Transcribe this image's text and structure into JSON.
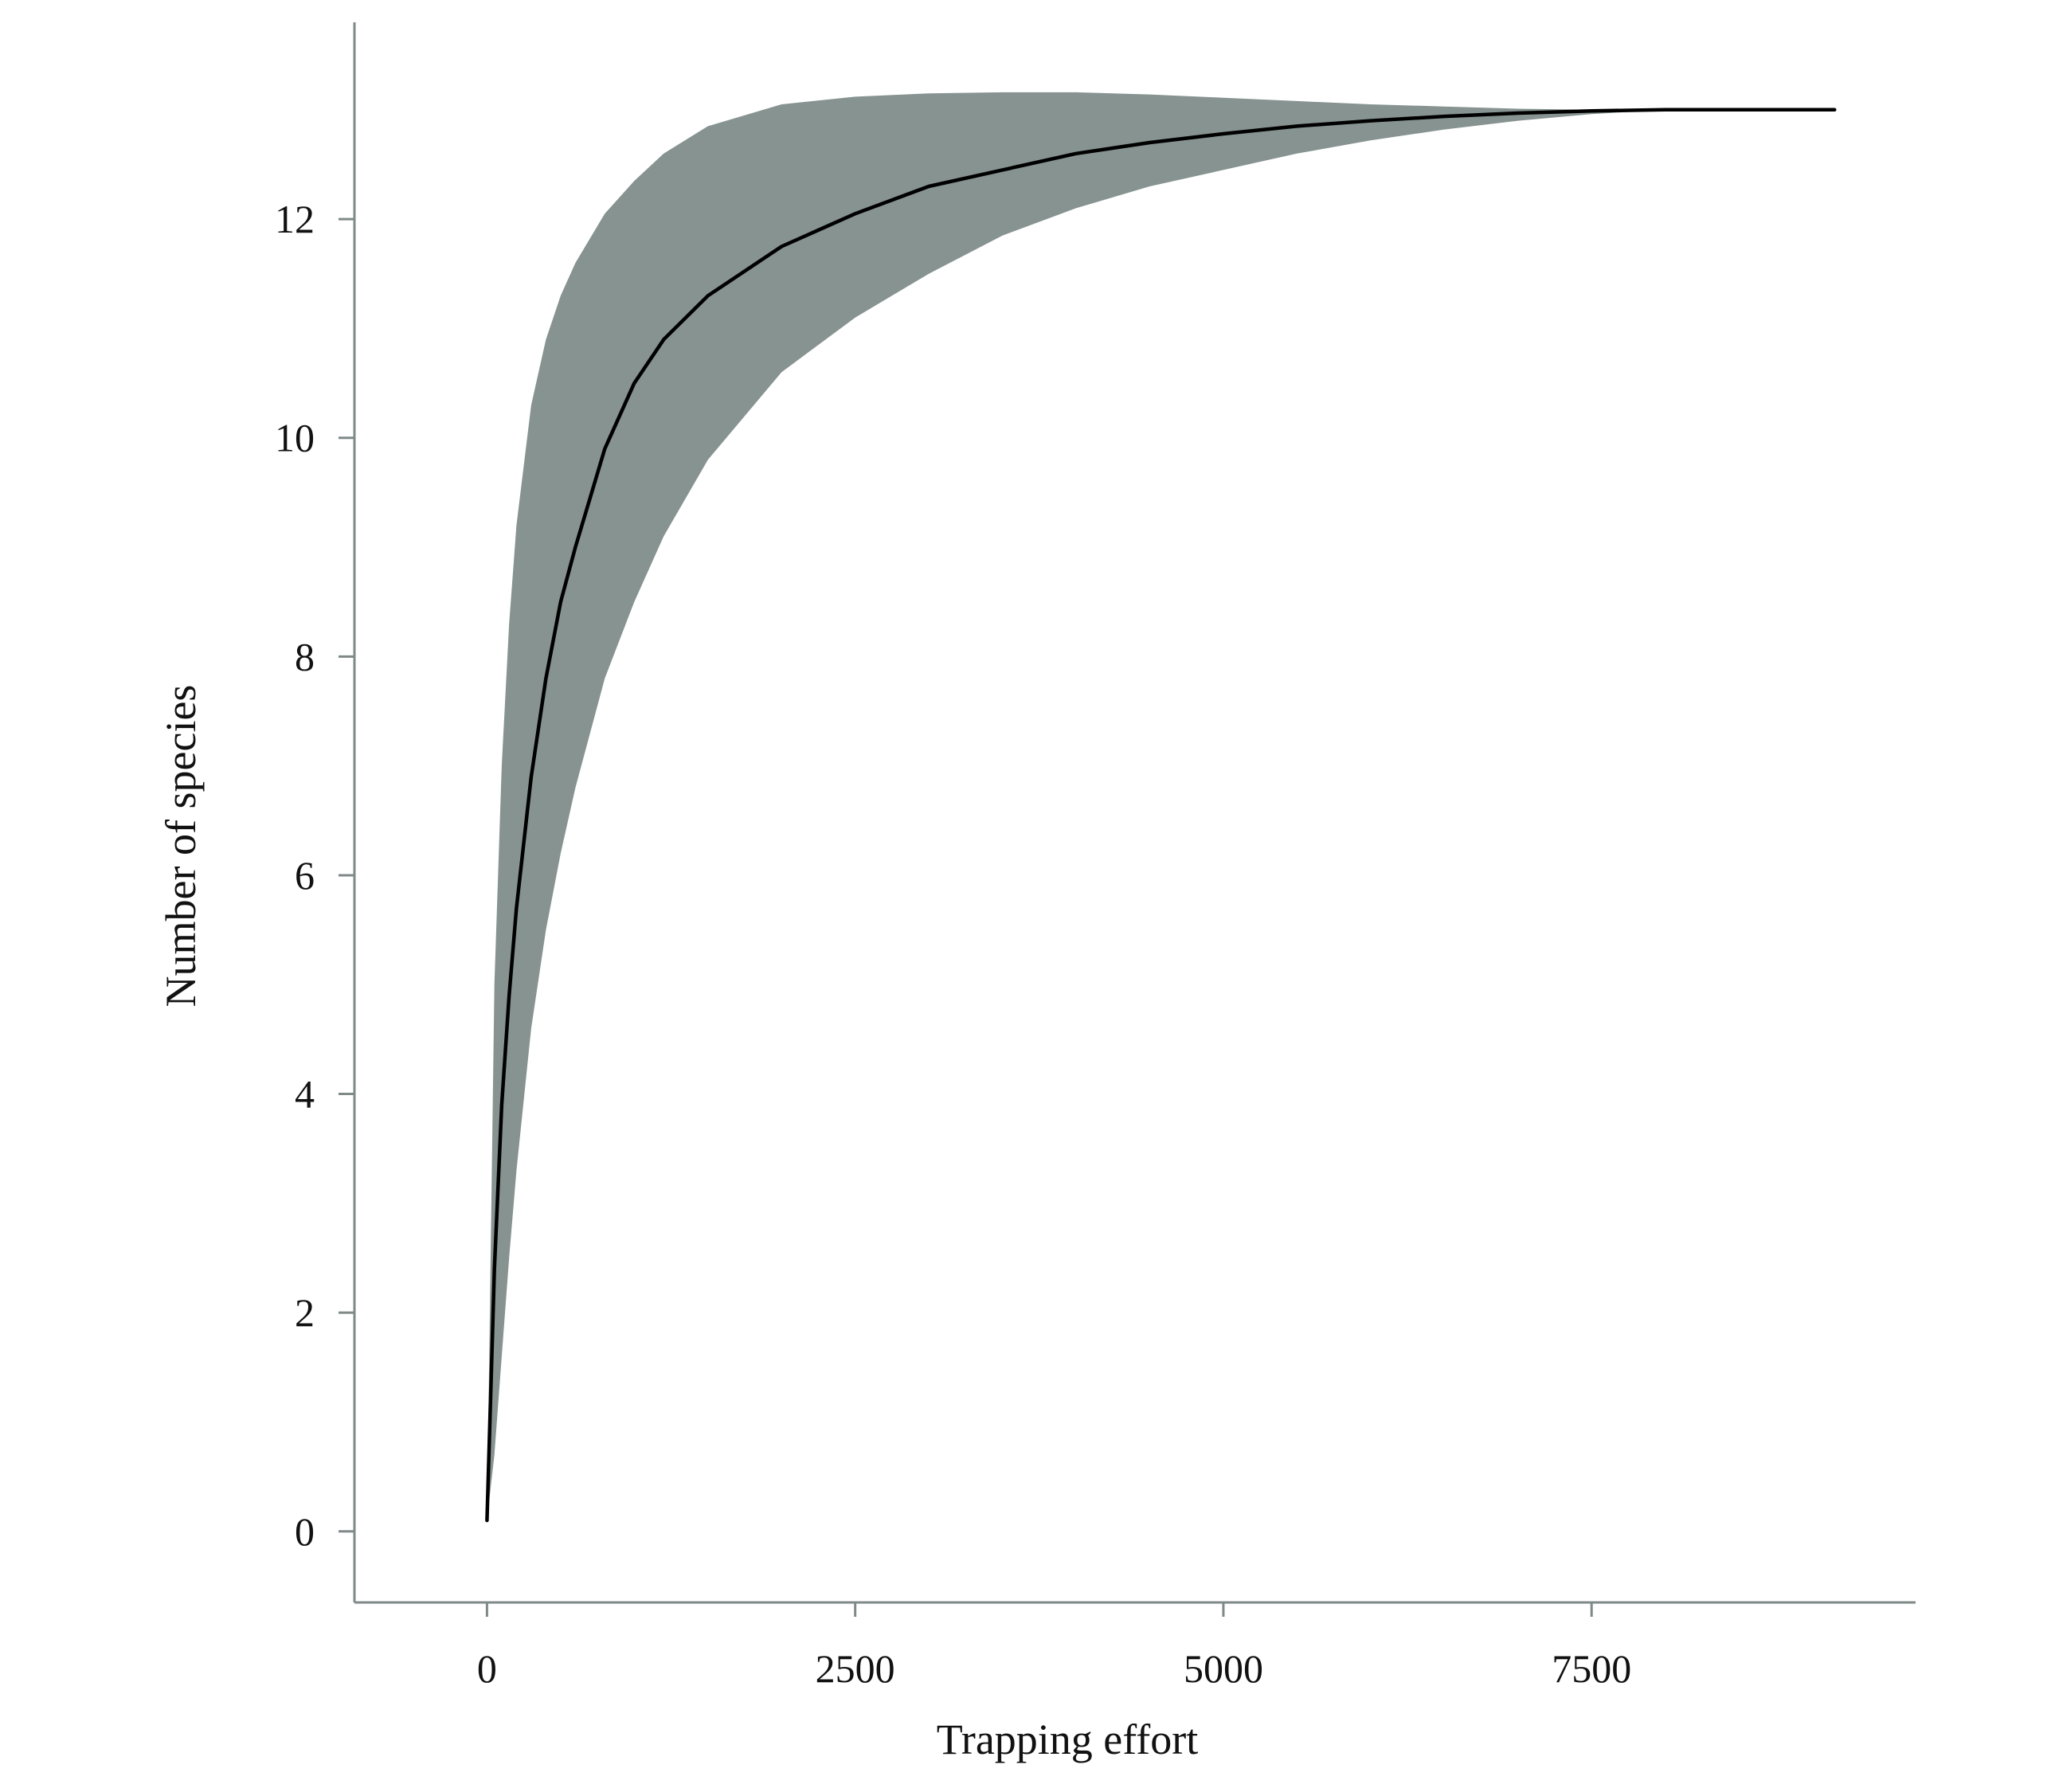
{
  "chart_data": {
    "type": "area",
    "title": "",
    "xlabel": "Trapping effort",
    "ylabel": "Number of species",
    "xlim": [
      -900,
      9700
    ],
    "ylim": [
      -0.65,
      13.8
    ],
    "xticks": [
      0,
      2500,
      5000,
      7500
    ],
    "xtick_labels": [
      "0",
      "2500",
      "5000",
      "7500"
    ],
    "yticks": [
      0,
      2,
      4,
      6,
      8,
      10,
      12
    ],
    "ytick_labels": [
      "0",
      "2",
      "4",
      "6",
      "8",
      "10",
      "12"
    ],
    "grid": false,
    "legend": "none",
    "series": [
      {
        "kind": "band",
        "color": "#869391",
        "x": [
          0,
          50,
          100,
          150,
          200,
          300,
          400,
          500,
          600,
          800,
          1000,
          1200,
          1500,
          2000,
          2500,
          3000,
          3500,
          4000,
          4500,
          5000,
          5500,
          6000,
          6500,
          7000,
          7500,
          8000,
          8500,
          9150
        ],
        "lower": [
          0.1,
          0.7,
          1.6,
          2.5,
          3.3,
          4.6,
          5.5,
          6.2,
          6.8,
          7.8,
          8.5,
          9.1,
          9.8,
          10.6,
          11.1,
          11.5,
          11.85,
          12.1,
          12.3,
          12.45,
          12.6,
          12.72,
          12.82,
          12.9,
          12.96,
          13.0,
          13.0,
          13.0
        ],
        "upper": [
          0.1,
          5.0,
          7.0,
          8.3,
          9.2,
          10.3,
          10.9,
          11.3,
          11.6,
          12.05,
          12.35,
          12.6,
          12.85,
          13.05,
          13.12,
          13.15,
          13.16,
          13.16,
          13.14,
          13.11,
          13.08,
          13.05,
          13.03,
          13.01,
          13.0,
          13.0,
          13.0,
          13.0
        ]
      },
      {
        "kind": "line",
        "color": "#000000",
        "x": [
          0,
          50,
          100,
          150,
          200,
          300,
          400,
          500,
          600,
          800,
          1000,
          1200,
          1500,
          2000,
          2500,
          3000,
          3500,
          4000,
          4500,
          5000,
          5500,
          6000,
          6500,
          7000,
          7500,
          8000,
          8500,
          9150
        ],
        "y": [
          0.1,
          2.4,
          3.9,
          4.9,
          5.7,
          6.9,
          7.8,
          8.5,
          9.0,
          9.9,
          10.5,
          10.9,
          11.3,
          11.75,
          12.05,
          12.3,
          12.45,
          12.6,
          12.7,
          12.78,
          12.85,
          12.9,
          12.94,
          12.97,
          12.99,
          13.0,
          13.0,
          13.0
        ]
      }
    ]
  }
}
